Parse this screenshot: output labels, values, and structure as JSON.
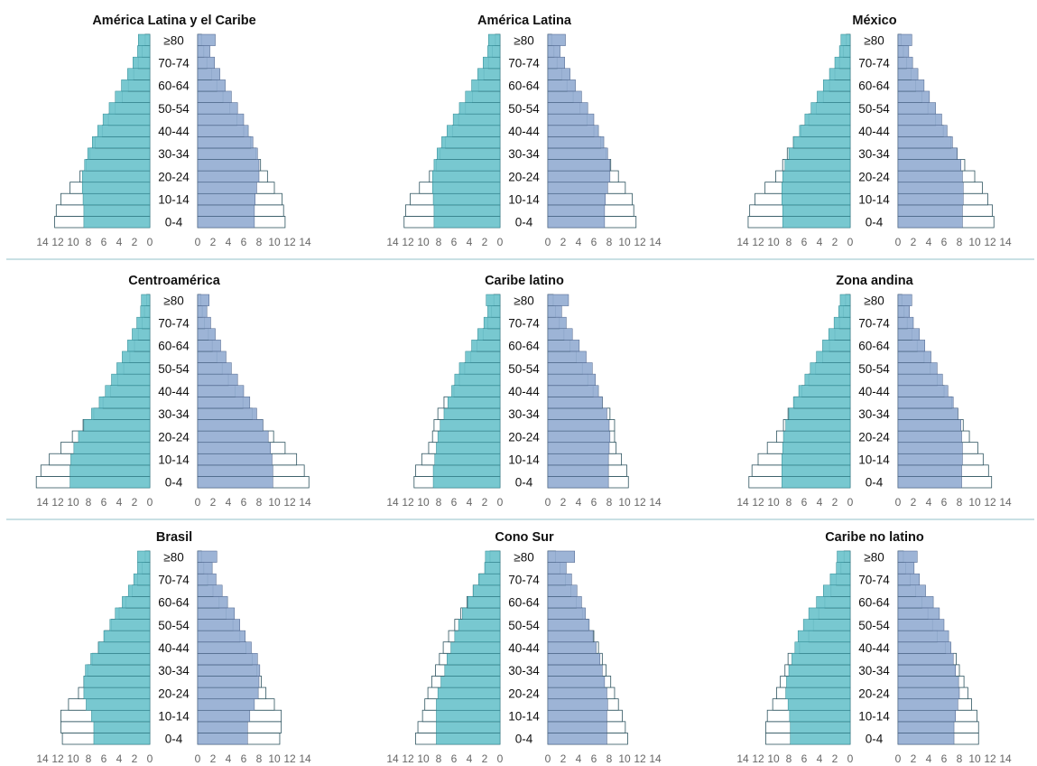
{
  "colors": {
    "female_fill": "#6cc3cc",
    "female_stroke": "#2c8791",
    "male_fill": "#95aed2",
    "male_stroke": "#4b6189",
    "outline_stroke": "#2f5560",
    "separator": "#a9cdd3",
    "tick_text": "#666666"
  },
  "age_tick_labels": [
    "≥80",
    "70-74",
    "60-64",
    "50-54",
    "40-44",
    "30-34",
    "20-24",
    "10-14",
    "0-4"
  ],
  "x_tick_labels": [
    "14",
    "12",
    "10",
    "8",
    "6",
    "4",
    "2",
    "0"
  ],
  "x_tick_labels_right": [
    "0",
    "2",
    "4",
    "6",
    "8",
    "10",
    "12",
    "14"
  ],
  "chart_data": [
    {
      "type": "bar",
      "title": "América Latina y el Caribe",
      "categories": [
        "0-4",
        "5-9",
        "10-14",
        "15-19",
        "20-24",
        "25-29",
        "30-34",
        "35-39",
        "40-44",
        "45-49",
        "50-54",
        "55-59",
        "60-64",
        "65-69",
        "70-74",
        "75-79",
        "≥80"
      ],
      "xlim": [
        0,
        14
      ],
      "series": [
        {
          "values_a": [
            8.6,
            8.6,
            8.7,
            8.8,
            8.8,
            8.5,
            8.1,
            7.5,
            6.8,
            6.1,
            5.3,
            4.5,
            3.7,
            2.9,
            2.2,
            1.6,
            1.5
          ]
        },
        {
          "values_b": [
            7.4,
            7.4,
            7.5,
            7.7,
            8.0,
            8.0,
            7.8,
            7.2,
            6.6,
            6.0,
            5.2,
            4.4,
            3.6,
            2.9,
            2.2,
            1.6,
            2.3
          ]
        },
        {
          "values_a": [
            12.4,
            12.2,
            11.6,
            10.4,
            9.1,
            8.3,
            7.8,
            7.1,
            6.2,
            5.4,
            4.5,
            3.6,
            2.8,
            2.1,
            1.5,
            1.0,
            0.6
          ]
        },
        {
          "values_b": [
            11.4,
            11.2,
            11.0,
            10.0,
            9.1,
            8.2,
            7.6,
            6.9,
            6.0,
            5.1,
            4.2,
            3.3,
            2.5,
            1.8,
            1.2,
            0.8,
            0.5
          ]
        }
      ]
    },
    {
      "type": "bar",
      "title": "América Latina",
      "categories": [
        "0-4",
        "5-9",
        "10-14",
        "15-19",
        "20-24",
        "25-29",
        "30-34",
        "35-39",
        "40-44",
        "45-49",
        "50-54",
        "55-59",
        "60-64",
        "65-69",
        "70-74",
        "75-79",
        "≥80"
      ],
      "xlim": [
        0,
        14
      ],
      "series": [
        {
          "values_a": [
            8.6,
            8.6,
            8.7,
            8.8,
            8.8,
            8.6,
            8.2,
            7.6,
            6.9,
            6.1,
            5.3,
            4.5,
            3.7,
            2.9,
            2.2,
            1.6,
            1.5
          ]
        },
        {
          "values_b": [
            7.4,
            7.4,
            7.5,
            7.8,
            8.1,
            8.1,
            7.8,
            7.3,
            6.6,
            6.0,
            5.2,
            4.4,
            3.6,
            2.9,
            2.2,
            1.6,
            2.3
          ]
        },
        {
          "values_a": [
            12.5,
            12.3,
            11.7,
            10.5,
            9.2,
            8.3,
            7.8,
            7.1,
            6.2,
            5.4,
            4.5,
            3.6,
            2.8,
            2.1,
            1.5,
            1.0,
            0.6
          ]
        },
        {
          "values_b": [
            11.5,
            11.2,
            11.0,
            10.1,
            9.2,
            8.2,
            7.6,
            6.9,
            6.0,
            5.1,
            4.2,
            3.3,
            2.5,
            1.8,
            1.2,
            0.8,
            0.5
          ]
        }
      ]
    },
    {
      "type": "bar",
      "title": "México",
      "categories": [
        "0-4",
        "5-9",
        "10-14",
        "15-19",
        "20-24",
        "25-29",
        "30-34",
        "35-39",
        "40-44",
        "45-49",
        "50-54",
        "55-59",
        "60-64",
        "65-69",
        "70-74",
        "75-79",
        "≥80"
      ],
      "xlim": [
        0,
        14
      ],
      "series": [
        {
          "values_a": [
            8.8,
            8.8,
            8.9,
            8.9,
            8.8,
            8.5,
            8.0,
            7.4,
            6.6,
            5.9,
            5.1,
            4.3,
            3.5,
            2.7,
            2.0,
            1.4,
            1.2
          ]
        },
        {
          "values_b": [
            8.4,
            8.4,
            8.5,
            8.5,
            8.4,
            8.2,
            7.7,
            7.1,
            6.4,
            5.7,
            4.9,
            4.1,
            3.4,
            2.6,
            1.9,
            1.4,
            1.8
          ]
        },
        {
          "values_a": [
            13.3,
            13.1,
            12.4,
            11.1,
            9.7,
            8.8,
            8.2,
            7.4,
            6.4,
            5.4,
            4.4,
            3.5,
            2.7,
            2.0,
            1.4,
            0.9,
            0.5
          ]
        },
        {
          "values_b": [
            12.5,
            12.3,
            11.7,
            11.0,
            10.0,
            8.7,
            7.7,
            6.9,
            5.9,
            4.9,
            3.9,
            3.1,
            2.3,
            1.7,
            1.1,
            0.7,
            0.4
          ]
        }
      ]
    },
    {
      "type": "bar",
      "title": "Centroamérica",
      "categories": [
        "0-4",
        "5-9",
        "10-14",
        "15-19",
        "20-24",
        "25-29",
        "30-34",
        "35-39",
        "40-44",
        "45-49",
        "50-54",
        "55-59",
        "60-64",
        "65-69",
        "70-74",
        "75-79",
        "≥80"
      ],
      "xlim": [
        0,
        14
      ],
      "series": [
        {
          "values_a": [
            10.4,
            10.4,
            10.3,
            9.9,
            9.3,
            8.6,
            7.6,
            6.6,
            5.8,
            5.0,
            4.3,
            3.6,
            2.9,
            2.3,
            1.7,
            1.2,
            1.1
          ]
        },
        {
          "values_b": [
            9.8,
            9.8,
            9.7,
            9.5,
            9.2,
            8.5,
            7.7,
            6.8,
            6.0,
            5.2,
            4.4,
            3.7,
            3.0,
            2.3,
            1.7,
            1.2,
            1.5
          ]
        },
        {
          "values_a": [
            14.8,
            14.2,
            13.1,
            11.6,
            10.1,
            8.7,
            7.3,
            6.1,
            5.1,
            4.2,
            3.4,
            2.6,
            2.0,
            1.5,
            1.0,
            0.7,
            0.4
          ]
        },
        {
          "values_b": [
            14.5,
            13.9,
            12.9,
            11.4,
            9.9,
            8.5,
            7.1,
            5.9,
            4.9,
            4.0,
            3.2,
            2.5,
            1.9,
            1.4,
            0.9,
            0.6,
            0.4
          ]
        }
      ]
    },
    {
      "type": "bar",
      "title": "Caribe latino",
      "categories": [
        "0-4",
        "5-9",
        "10-14",
        "15-19",
        "20-24",
        "25-29",
        "30-34",
        "35-39",
        "40-44",
        "45-49",
        "50-54",
        "55-59",
        "60-64",
        "65-69",
        "70-74",
        "75-79",
        "≥80"
      ],
      "xlim": [
        0,
        14
      ],
      "series": [
        {
          "values_a": [
            8.7,
            8.7,
            8.5,
            8.3,
            8.1,
            7.8,
            7.3,
            6.8,
            6.3,
            5.9,
            5.3,
            4.5,
            3.7,
            2.9,
            2.1,
            1.6,
            1.8
          ]
        },
        {
          "values_b": [
            7.9,
            7.9,
            7.9,
            8.0,
            8.1,
            8.0,
            7.7,
            7.1,
            6.6,
            6.2,
            5.8,
            5.0,
            4.1,
            3.2,
            2.4,
            1.8,
            2.7
          ]
        },
        {
          "values_a": [
            11.2,
            11.0,
            10.2,
            9.3,
            8.8,
            8.6,
            8.1,
            7.3,
            6.0,
            5.3,
            4.6,
            3.8,
            3.0,
            2.2,
            1.6,
            1.1,
            0.8
          ]
        },
        {
          "values_b": [
            10.5,
            10.3,
            9.6,
            8.9,
            8.7,
            8.7,
            8.1,
            7.1,
            5.9,
            5.2,
            4.5,
            3.7,
            2.9,
            2.1,
            1.5,
            1.0,
            0.7
          ]
        }
      ]
    },
    {
      "type": "bar",
      "title": "Zona andina",
      "categories": [
        "0-4",
        "5-9",
        "10-14",
        "15-19",
        "20-24",
        "25-29",
        "30-34",
        "35-39",
        "40-44",
        "45-49",
        "50-54",
        "55-59",
        "60-64",
        "65-69",
        "70-74",
        "75-79",
        "≥80"
      ],
      "xlim": [
        0,
        14
      ],
      "series": [
        {
          "values_a": [
            8.9,
            8.9,
            8.9,
            8.8,
            8.7,
            8.4,
            8.0,
            7.4,
            6.7,
            5.9,
            5.2,
            4.4,
            3.6,
            2.8,
            2.1,
            1.5,
            1.3
          ]
        },
        {
          "values_b": [
            8.3,
            8.3,
            8.4,
            8.4,
            8.3,
            8.2,
            7.8,
            7.2,
            6.5,
            5.8,
            5.1,
            4.3,
            3.5,
            2.8,
            2.0,
            1.5,
            1.8
          ]
        },
        {
          "values_a": [
            13.2,
            12.8,
            12.0,
            10.8,
            9.6,
            8.7,
            8.1,
            7.3,
            6.3,
            5.4,
            4.5,
            3.6,
            2.7,
            2.0,
            1.4,
            0.9,
            0.6
          ]
        },
        {
          "values_b": [
            12.2,
            11.8,
            11.1,
            10.4,
            9.3,
            8.5,
            7.8,
            7.0,
            6.0,
            5.1,
            4.2,
            3.4,
            2.5,
            1.8,
            1.2,
            0.8,
            0.5
          ]
        }
      ]
    },
    {
      "type": "bar",
      "title": "Brasil",
      "categories": [
        "0-4",
        "5-9",
        "10-14",
        "15-19",
        "20-24",
        "25-29",
        "30-34",
        "35-39",
        "40-44",
        "45-49",
        "50-54",
        "55-59",
        "60-64",
        "65-69",
        "70-74",
        "75-79",
        "≥80"
      ],
      "xlim": [
        0,
        14
      ],
      "series": [
        {
          "values_a": [
            7.3,
            7.3,
            7.6,
            8.3,
            8.6,
            8.6,
            8.4,
            7.7,
            6.7,
            6.0,
            5.2,
            4.5,
            3.6,
            2.8,
            2.1,
            1.6,
            1.6
          ]
        },
        {
          "values_b": [
            6.5,
            6.5,
            6.8,
            7.4,
            7.9,
            8.0,
            8.1,
            7.8,
            7.0,
            6.2,
            5.5,
            4.8,
            3.9,
            3.2,
            2.4,
            1.9,
            2.5
          ]
        },
        {
          "values_a": [
            11.4,
            11.6,
            11.6,
            10.6,
            9.3,
            8.6,
            8.1,
            7.5,
            6.7,
            5.9,
            5.0,
            4.0,
            3.1,
            2.3,
            1.6,
            1.0,
            0.6
          ]
        },
        {
          "values_b": [
            10.7,
            10.9,
            10.9,
            10.0,
            8.9,
            8.3,
            7.7,
            7.1,
            6.3,
            5.5,
            4.6,
            3.7,
            2.8,
            2.0,
            1.3,
            0.8,
            0.5
          ]
        }
      ]
    },
    {
      "type": "bar",
      "title": "Cono Sur",
      "categories": [
        "0-4",
        "5-9",
        "10-14",
        "15-19",
        "20-24",
        "25-29",
        "30-34",
        "35-39",
        "40-44",
        "45-49",
        "50-54",
        "55-59",
        "60-64",
        "65-69",
        "70-74",
        "75-79",
        "≥80"
      ],
      "xlim": [
        0,
        14
      ],
      "series": [
        {
          "values_a": [
            8.3,
            8.3,
            8.3,
            8.3,
            8.1,
            7.7,
            7.2,
            6.9,
            6.4,
            5.9,
            5.4,
            4.9,
            4.2,
            3.5,
            2.8,
            2.0,
            1.9
          ]
        },
        {
          "values_b": [
            7.7,
            7.7,
            7.7,
            7.8,
            7.7,
            7.4,
            7.1,
            6.8,
            6.3,
            5.9,
            5.4,
            4.9,
            4.4,
            3.8,
            3.1,
            2.4,
            3.5
          ]
        },
        {
          "values_a": [
            11.0,
            10.7,
            10.1,
            9.8,
            9.4,
            8.9,
            8.4,
            7.9,
            7.4,
            6.7,
            5.9,
            5.1,
            4.3,
            3.5,
            2.7,
            1.9,
            1.3
          ]
        },
        {
          "values_b": [
            10.4,
            10.1,
            9.7,
            9.2,
            8.7,
            8.2,
            7.6,
            7.1,
            6.6,
            6.0,
            5.3,
            4.5,
            3.7,
            3.0,
            2.3,
            1.6,
            1.0
          ]
        }
      ]
    },
    {
      "type": "bar",
      "title": "Caribe no latino",
      "categories": [
        "0-4",
        "5-9",
        "10-14",
        "15-19",
        "20-24",
        "25-29",
        "30-34",
        "35-39",
        "40-44",
        "45-49",
        "50-54",
        "55-59",
        "60-64",
        "65-69",
        "70-74",
        "75-79",
        "≥80"
      ],
      "xlim": [
        0,
        14
      ],
      "series": [
        {
          "values_a": [
            7.8,
            7.8,
            7.9,
            8.1,
            8.4,
            8.3,
            8.0,
            7.6,
            7.2,
            6.8,
            6.1,
            5.4,
            4.4,
            3.5,
            2.6,
            1.8,
            1.7
          ]
        },
        {
          "values_b": [
            7.3,
            7.3,
            7.5,
            7.8,
            8.0,
            7.9,
            7.5,
            7.2,
            6.9,
            6.6,
            6.0,
            5.4,
            4.6,
            3.6,
            2.8,
            2.1,
            2.5
          ]
        },
        {
          "values_a": [
            11.0,
            11.0,
            10.8,
            10.1,
            9.6,
            9.1,
            8.5,
            8.1,
            6.6,
            5.4,
            4.8,
            4.1,
            3.3,
            2.5,
            1.8,
            1.2,
            0.8
          ]
        },
        {
          "values_b": [
            10.5,
            10.5,
            10.3,
            9.6,
            9.1,
            8.6,
            8.0,
            7.6,
            6.2,
            5.1,
            4.5,
            3.9,
            3.1,
            2.3,
            1.6,
            1.0,
            0.7
          ]
        }
      ]
    }
  ]
}
